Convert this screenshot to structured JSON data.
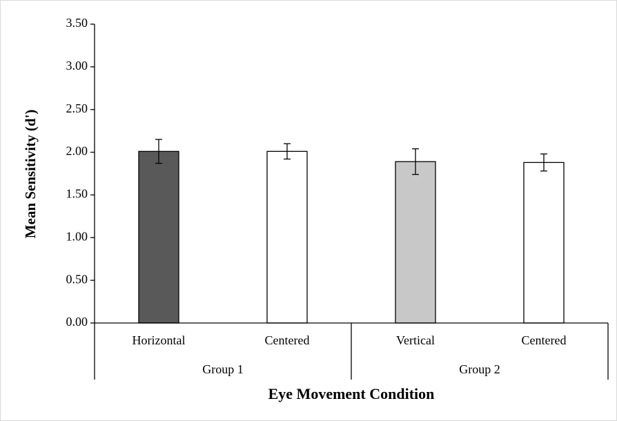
{
  "chart_data": {
    "type": "bar",
    "ylabel": "Mean Sensitivity (d')",
    "xlabel": "Eye Movement Condition",
    "categories": [
      "Horizontal",
      "Centered",
      "Vertical",
      "Centered"
    ],
    "groups": [
      "Group 1",
      "Group 2"
    ],
    "values": [
      2.01,
      2.01,
      1.89,
      1.88
    ],
    "errors": [
      0.14,
      0.09,
      0.15,
      0.1
    ],
    "colors": [
      "#595959",
      "#ffffff",
      "#c8c8c8",
      "#ffffff"
    ],
    "ylim": [
      0,
      3.5
    ],
    "yticks": [
      {
        "value": 0,
        "label": "0.00"
      },
      {
        "value": 0.5,
        "label": "0.50"
      },
      {
        "value": 1,
        "label": "1.00"
      },
      {
        "value": 1.5,
        "label": "1.50"
      },
      {
        "value": 2,
        "label": "2.00"
      },
      {
        "value": 2.5,
        "label": "2.50"
      },
      {
        "value": 3,
        "label": "3.00"
      },
      {
        "value": 3.5,
        "label": "3.50"
      }
    ]
  }
}
